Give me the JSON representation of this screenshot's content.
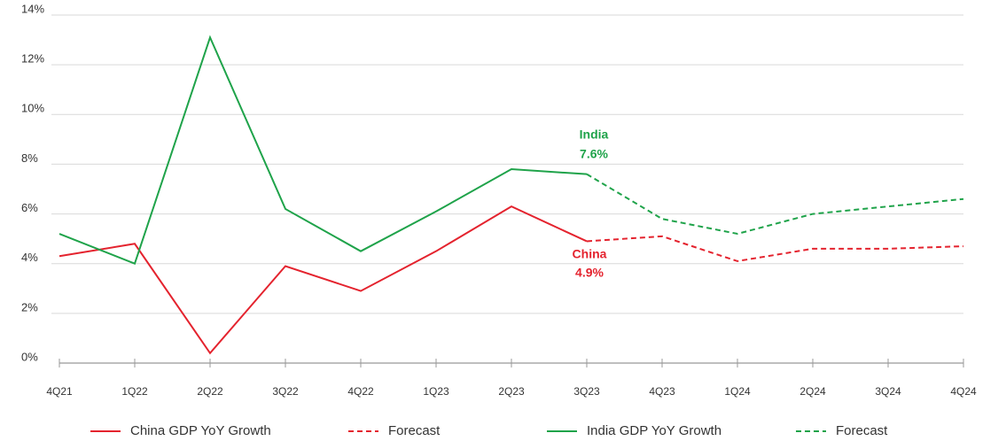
{
  "chart_data": {
    "type": "line",
    "categories": [
      "4Q21",
      "1Q22",
      "2Q22",
      "3Q22",
      "4Q22",
      "1Q23",
      "2Q23",
      "3Q23",
      "4Q23",
      "1Q24",
      "2Q24",
      "3Q24",
      "4Q24"
    ],
    "series": [
      {
        "name": "China GDP YoY Growth",
        "color": "#e4232e",
        "dashed": false,
        "values": [
          4.3,
          4.8,
          0.4,
          3.9,
          2.9,
          4.5,
          6.3,
          4.9,
          null,
          null,
          null,
          null,
          null
        ]
      },
      {
        "name": "Forecast",
        "color": "#e4232e",
        "dashed": true,
        "values": [
          null,
          null,
          null,
          null,
          null,
          null,
          null,
          4.9,
          5.1,
          4.1,
          4.6,
          4.6,
          4.7
        ]
      },
      {
        "name": "India GDP YoY Growth",
        "color": "#1fa34a",
        "dashed": false,
        "values": [
          5.2,
          4.0,
          13.1,
          6.2,
          4.5,
          6.1,
          7.8,
          7.6,
          null,
          null,
          null,
          null,
          null
        ]
      },
      {
        "name": "Forecast",
        "color": "#1fa34a",
        "dashed": true,
        "values": [
          null,
          null,
          null,
          null,
          null,
          null,
          null,
          7.6,
          5.8,
          5.2,
          6.0,
          6.3,
          6.6
        ]
      }
    ],
    "ylim": [
      0,
      14
    ],
    "yticks": [
      {
        "value": 0,
        "label": "0%"
      },
      {
        "value": 2,
        "label": "2%"
      },
      {
        "value": 4,
        "label": "4%"
      },
      {
        "value": 6,
        "label": "6%"
      },
      {
        "value": 8,
        "label": "8%"
      },
      {
        "value": 10,
        "label": "10%"
      },
      {
        "value": 12,
        "label": "12%"
      },
      {
        "value": 14,
        "label": "14%"
      }
    ],
    "grid": true,
    "annotations": [
      "India",
      "7.6%",
      "China",
      "4.9%"
    ]
  }
}
